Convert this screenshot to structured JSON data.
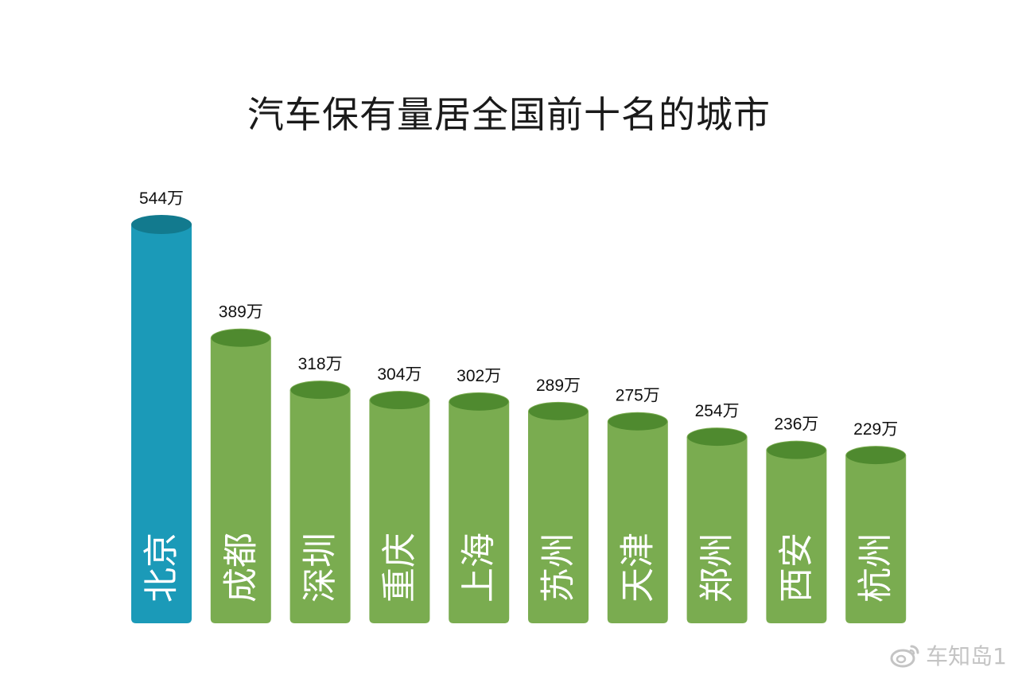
{
  "chart_data": {
    "type": "bar",
    "title": "汽车保有量居全国前十名的城市",
    "unit": "万",
    "categories": [
      "北京",
      "成都",
      "深圳",
      "重庆",
      "上海",
      "苏州",
      "天津",
      "郑州",
      "西安",
      "杭州"
    ],
    "values": [
      544,
      389,
      318,
      304,
      302,
      289,
      275,
      254,
      236,
      229
    ],
    "value_labels": [
      "544万",
      "389万",
      "318万",
      "304万",
      "302万",
      "289万",
      "275万",
      "254万",
      "236万",
      "229万"
    ],
    "highlight_index": 0,
    "colors": {
      "highlight_body": "#1b9ab8",
      "highlight_top": "#127a8e",
      "body": "#7aac50",
      "top": "#4f8a2f",
      "category_text": "#ffffff",
      "label_text": "#111111"
    },
    "grid": false,
    "legend": "none"
  },
  "watermark": {
    "text": "车知岛1",
    "icon": "weibo-icon"
  }
}
